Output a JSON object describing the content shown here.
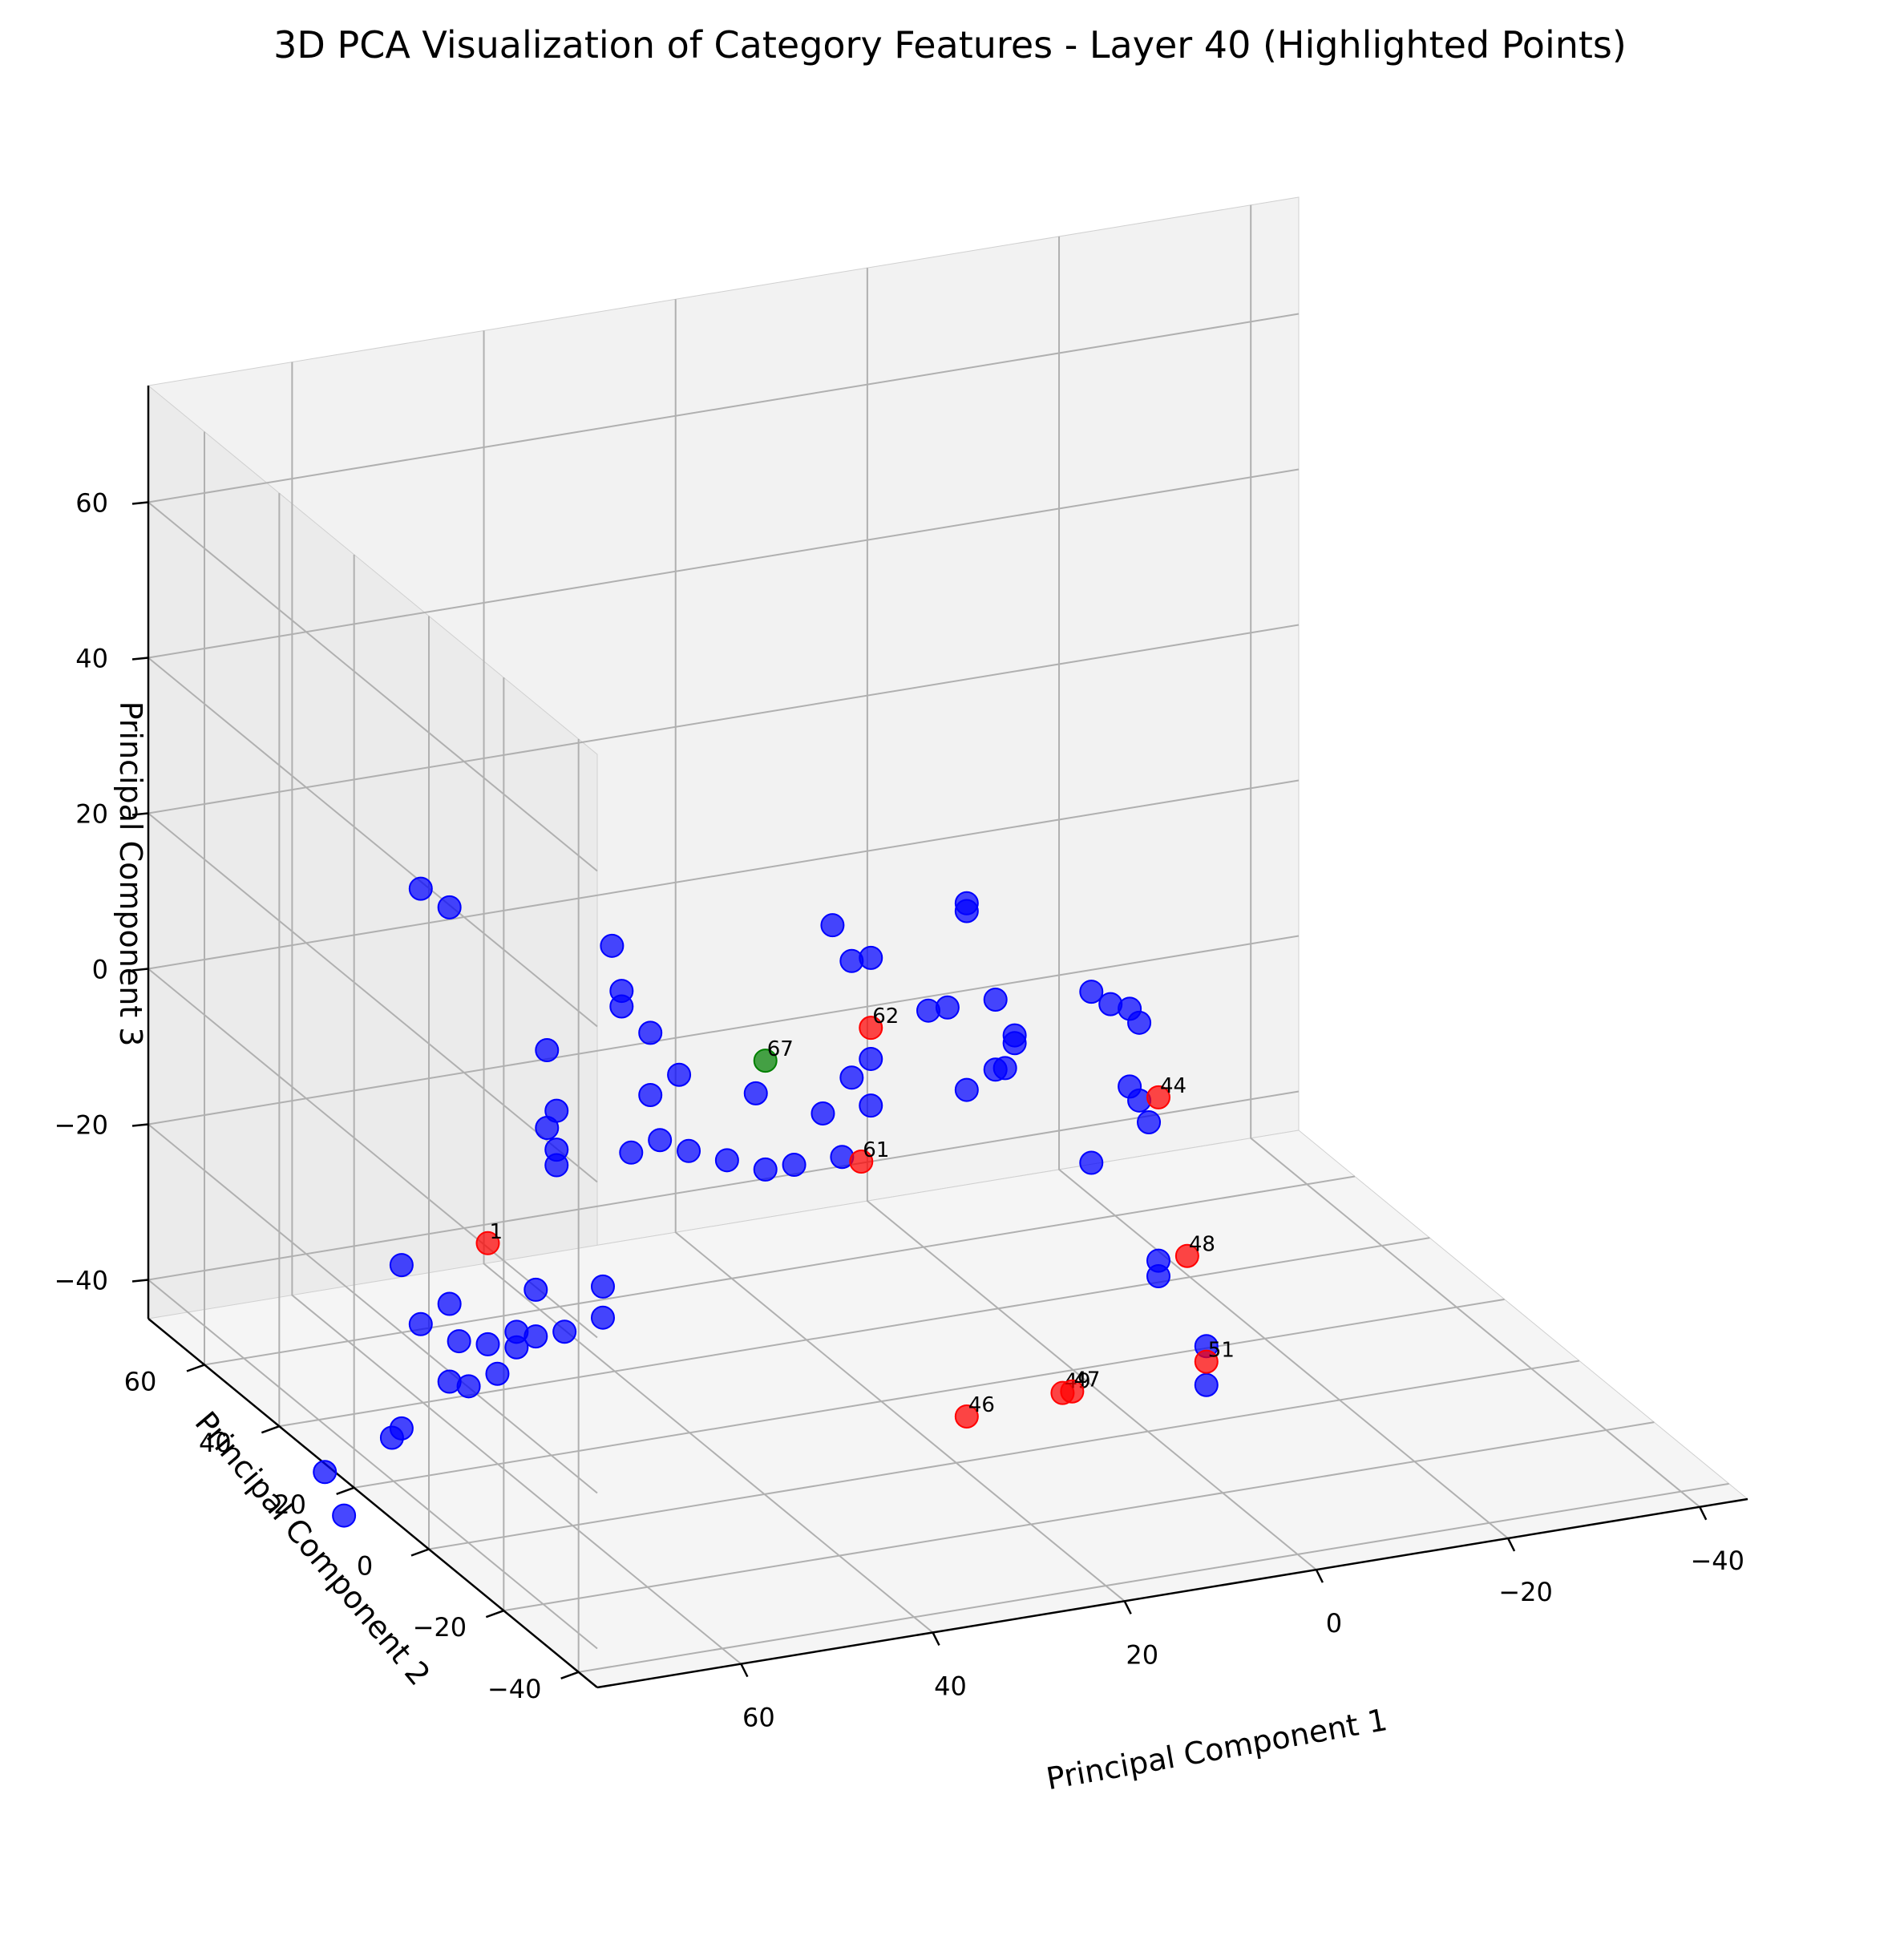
{
  "chart_data": {
    "type": "scatter",
    "title": "3D PCA Visualization of Category Features - Layer 40 (Highlighted Points)",
    "xlabel": "Principal Component 1",
    "ylabel": "Principal Component 2",
    "zlabel": "Principal Component 3",
    "xticks": [
      "−40",
      "−20",
      "0",
      "20",
      "40",
      "60"
    ],
    "yticks": [
      "−40",
      "−20",
      "0",
      "20",
      "40",
      "60"
    ],
    "zticks": [
      "−40",
      "−20",
      "0",
      "20",
      "40",
      "60"
    ],
    "grid": true,
    "colors": {
      "default": "#0000ff",
      "highlight": "#ff0000",
      "target": "#008000"
    },
    "series": [
      {
        "color": "#0000ff",
        "points": [
          {
            "x": 70,
            "y": 15,
            "z": 33
          },
          {
            "x": 67,
            "y": 15,
            "z": 30
          },
          {
            "x": 52,
            "y": 10,
            "z": 24
          },
          {
            "x": 51,
            "y": 10,
            "z": 18
          },
          {
            "x": 51,
            "y": 10,
            "z": 16
          },
          {
            "x": 48,
            "y": 10,
            "z": 12
          },
          {
            "x": 58,
            "y": 12,
            "z": 11
          },
          {
            "x": 45,
            "y": 10,
            "z": 6
          },
          {
            "x": 48,
            "y": 10,
            "z": 4
          },
          {
            "x": 57,
            "y": 12,
            "z": 3
          },
          {
            "x": 58,
            "y": 12,
            "z": 1
          },
          {
            "x": 57,
            "y": 12,
            "z": -2
          },
          {
            "x": 57,
            "y": 12,
            "z": -4
          },
          {
            "x": 50,
            "y": 10,
            "z": -3
          },
          {
            "x": 47,
            "y": 10,
            "z": -2
          },
          {
            "x": 44,
            "y": 10,
            "z": -4
          },
          {
            "x": 40,
            "y": 10,
            "z": -6
          },
          {
            "x": 37,
            "y": 10,
            "z": 2
          },
          {
            "x": 29,
            "y": 10,
            "z": 22
          },
          {
            "x": 27,
            "y": 10,
            "z": 17
          },
          {
            "x": 27,
            "y": 10,
            "z": 2
          },
          {
            "x": 30,
            "y": 10,
            "z": -2
          },
          {
            "x": 25,
            "y": 10,
            "z": 17
          },
          {
            "x": 25,
            "y": 10,
            "z": 4
          },
          {
            "x": 15,
            "y": 10,
            "z": 22
          },
          {
            "x": 15,
            "y": 10,
            "z": 21
          },
          {
            "x": 19,
            "y": 10,
            "z": 9
          },
          {
            "x": 17,
            "y": 10,
            "z": 9
          },
          {
            "x": 12,
            "y": 10,
            "z": 9
          },
          {
            "x": 10,
            "y": 10,
            "z": 4
          },
          {
            "x": 10,
            "y": 10,
            "z": 3
          },
          {
            "x": 11,
            "y": 10,
            "z": 0
          },
          {
            "x": 12,
            "y": 10,
            "z": 0
          },
          {
            "x": 15,
            "y": 10,
            "z": -2
          },
          {
            "x": 25,
            "y": 10,
            "z": -2
          },
          {
            "x": 33,
            "y": 10,
            "z": -8
          },
          {
            "x": 36,
            "y": 10,
            "z": -8
          },
          {
            "x": 28,
            "y": 10,
            "z": -8
          },
          {
            "x": 2,
            "y": 10,
            "z": 8
          },
          {
            "x": 0,
            "y": 10,
            "z": 6
          },
          {
            "x": -2,
            "y": 10,
            "z": 5
          },
          {
            "x": -3,
            "y": 10,
            "z": 3
          },
          {
            "x": -2,
            "y": 10,
            "z": -5
          },
          {
            "x": -3,
            "y": 10,
            "z": -7
          },
          {
            "x": -4,
            "y": 10,
            "z": -10
          },
          {
            "x": 2,
            "y": 10,
            "z": -14
          },
          {
            "x": -5,
            "y": 10,
            "z": -28
          },
          {
            "x": -5,
            "y": 10,
            "z": -30
          },
          {
            "x": -10,
            "y": 10,
            "z": -40
          },
          {
            "x": -10,
            "y": 10,
            "z": -45
          },
          {
            "x": 72,
            "y": 15,
            "z": -15
          },
          {
            "x": 70,
            "y": 15,
            "z": -23
          },
          {
            "x": 67,
            "y": 15,
            "z": -21
          },
          {
            "x": 66,
            "y": 15,
            "z": -26
          },
          {
            "x": 63,
            "y": 15,
            "z": -27
          },
          {
            "x": 60,
            "y": 15,
            "z": -28
          },
          {
            "x": 60,
            "y": 15,
            "z": -26
          },
          {
            "x": 58,
            "y": 15,
            "z": -27
          },
          {
            "x": 55,
            "y": 15,
            "z": -27
          },
          {
            "x": 51,
            "y": 15,
            "z": -22
          },
          {
            "x": 51,
            "y": 15,
            "z": -26
          },
          {
            "x": 58,
            "y": 15,
            "z": -21
          },
          {
            "x": 62,
            "y": 15,
            "z": -31
          },
          {
            "x": 65,
            "y": 15,
            "z": -32
          },
          {
            "x": 67,
            "y": 15,
            "z": -31
          },
          {
            "x": 72,
            "y": 15,
            "z": -36
          },
          {
            "x": 73,
            "y": 15,
            "z": -37
          },
          {
            "x": 80,
            "y": 15,
            "z": -40
          },
          {
            "x": 78,
            "y": 15,
            "z": -46
          }
        ]
      },
      {
        "color": "#ff0000",
        "points": [
          {
            "x": 25,
            "y": 10,
            "z": 8,
            "label": "62"
          },
          {
            "x": 26,
            "y": 10,
            "z": -9,
            "label": "61"
          },
          {
            "x": -5,
            "y": 10,
            "z": -7,
            "label": "44"
          },
          {
            "x": -8,
            "y": 10,
            "z": -28,
            "label": "48"
          },
          {
            "x": 5,
            "y": 10,
            "z": -43,
            "label": "49"
          },
          {
            "x": 4,
            "y": 10,
            "z": -43,
            "label": "47"
          },
          {
            "x": 15,
            "y": 10,
            "z": -44,
            "label": "46"
          },
          {
            "x": -10,
            "y": 10,
            "z": -42,
            "label": "51"
          },
          {
            "x": 63,
            "y": 15,
            "z": -14,
            "label": "1"
          }
        ]
      },
      {
        "color": "#008000",
        "points": [
          {
            "x": 36,
            "y": 10,
            "z": 6,
            "label": "67"
          }
        ]
      }
    ]
  }
}
